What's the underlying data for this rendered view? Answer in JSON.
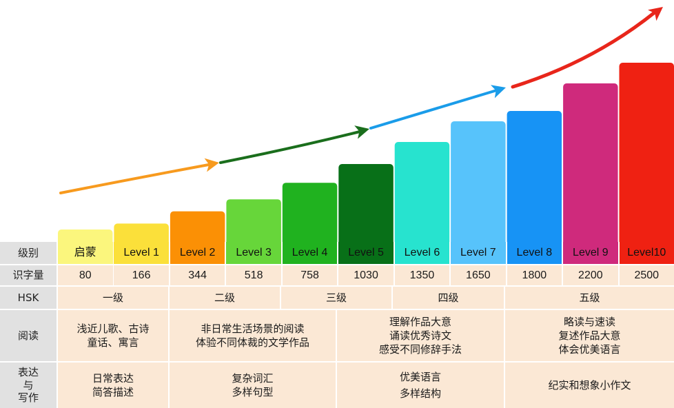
{
  "chart_data": {
    "type": "bar",
    "categories": [
      "启蒙",
      "Level 1",
      "Level 2",
      "Level 3",
      "Level 4",
      "Level 5",
      "Level 6",
      "Level 7",
      "Level 8",
      "Level 9",
      "Level10"
    ],
    "values": [
      80,
      166,
      344,
      518,
      758,
      1030,
      1350,
      1650,
      1800,
      2200,
      2500
    ],
    "bar_colors": [
      "#fbf67d",
      "#fbe03a",
      "#fb9005",
      "#67d63a",
      "#20b21f",
      "#087018",
      "#27e3cf",
      "#57c3fb",
      "#1793f5",
      "#cf2a7c",
      "#ef2112"
    ],
    "arrow_colors": [
      "#f79a1e",
      "#1a6e1c",
      "#1a9ce9",
      "#e8261b"
    ],
    "title": "",
    "xlabel": "",
    "ylabel": "",
    "grid": false,
    "legend": "none"
  },
  "table": {
    "row_labels": {
      "level": "级别",
      "chars": "识字量",
      "hsk": "HSK",
      "reading": "阅读",
      "writing": [
        "表达",
        "与",
        "写作"
      ]
    },
    "hsk_groups": [
      "一级",
      "二级",
      "三级",
      "四级",
      "五级"
    ],
    "reading_groups": [
      [
        "浅近儿歌、古诗",
        "童话、寓言"
      ],
      [
        "非日常生活场景的阅读",
        "体验不同体裁的文学作品"
      ],
      [
        "理解作品大意",
        "诵读优秀诗文",
        "感受不同修辞手法"
      ],
      [
        "略读与速读",
        "复述作品大意",
        "体会优美语言"
      ]
    ],
    "writing_groups": [
      [
        "日常表达",
        "简答描述"
      ],
      [
        "复杂词汇",
        "多样句型"
      ],
      [
        "优美语言",
        "多样结构"
      ],
      [
        "纪实和想象小作文"
      ]
    ]
  }
}
